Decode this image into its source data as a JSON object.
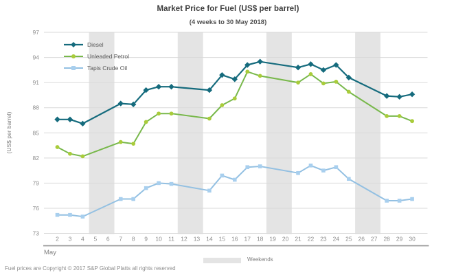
{
  "title": "Market Price for Fuel (US$ per barrel)",
  "subtitle": "(4 weeks to 30 May 2018)",
  "y_axis_title": "(US$ per barrel)",
  "month_label": "May",
  "weekend_legend_label": "Weekends",
  "footer": "Fuel prices are Copyright © 2017 S&P Global Platts all rights reserved",
  "colors": {
    "diesel": "#156b7d",
    "unleaded_line": "#78b84b",
    "unleaded_marker": "#a9cc3a",
    "tapis_line": "#93c0e2",
    "tapis_marker": "#a8cfee",
    "gridline": "#d9d9d9",
    "weekend_band": "#e4e4e4",
    "axis_line": "#999999",
    "tick_text": "#8c8c8c"
  },
  "chart_data": {
    "type": "line",
    "title": "Market Price for Fuel (US$ per barrel)",
    "subtitle": "(4 weeks to 30 May 2018)",
    "ylabel": "(US$ per barrel)",
    "xlabel": "May",
    "ylim": [
      73,
      97
    ],
    "yticks": [
      73,
      76,
      79,
      82,
      85,
      88,
      91,
      94,
      97
    ],
    "xticks": [
      2,
      3,
      4,
      5,
      6,
      7,
      8,
      9,
      10,
      11,
      12,
      13,
      14,
      15,
      16,
      17,
      18,
      19,
      20,
      21,
      22,
      23,
      24,
      25,
      26,
      27,
      28,
      29,
      30
    ],
    "grid": "horizontal-only",
    "legend_position": "top-left-inside",
    "weekend_bands": [
      [
        5,
        6
      ],
      [
        12,
        13
      ],
      [
        19,
        20
      ],
      [
        26,
        27
      ]
    ],
    "weekend_label": "Weekends",
    "x": [
      2,
      3,
      4,
      7,
      8,
      9,
      10,
      11,
      14,
      15,
      16,
      17,
      18,
      21,
      22,
      23,
      24,
      25,
      28,
      29,
      30
    ],
    "series": [
      {
        "name": "Diesel",
        "marker": "diamond",
        "line_color": "#156b7d",
        "marker_color": "#156b7d",
        "values": [
          86.6,
          86.6,
          86.1,
          88.5,
          88.4,
          90.1,
          90.5,
          90.5,
          90.1,
          91.9,
          91.4,
          93.1,
          93.5,
          92.8,
          93.2,
          92.5,
          93.1,
          91.6,
          89.4,
          89.3,
          89.6
        ]
      },
      {
        "name": "Unleaded Petrol",
        "marker": "circle",
        "line_color": "#78b84b",
        "marker_color": "#a9cc3a",
        "values": [
          83.3,
          82.5,
          82.2,
          83.9,
          83.7,
          86.3,
          87.3,
          87.3,
          86.7,
          88.3,
          89.1,
          92.3,
          91.8,
          91.0,
          92.0,
          90.9,
          91.1,
          89.9,
          87.0,
          87.0,
          86.4
        ]
      },
      {
        "name": "Tapis Crude Oil",
        "marker": "square",
        "line_color": "#93c0e2",
        "marker_color": "#a8cfee",
        "values": [
          75.2,
          75.2,
          75.0,
          77.1,
          77.1,
          78.4,
          79.0,
          78.9,
          78.1,
          79.9,
          79.4,
          80.9,
          81.0,
          80.2,
          81.1,
          80.5,
          80.9,
          79.5,
          76.9,
          76.9,
          77.1
        ]
      }
    ]
  }
}
